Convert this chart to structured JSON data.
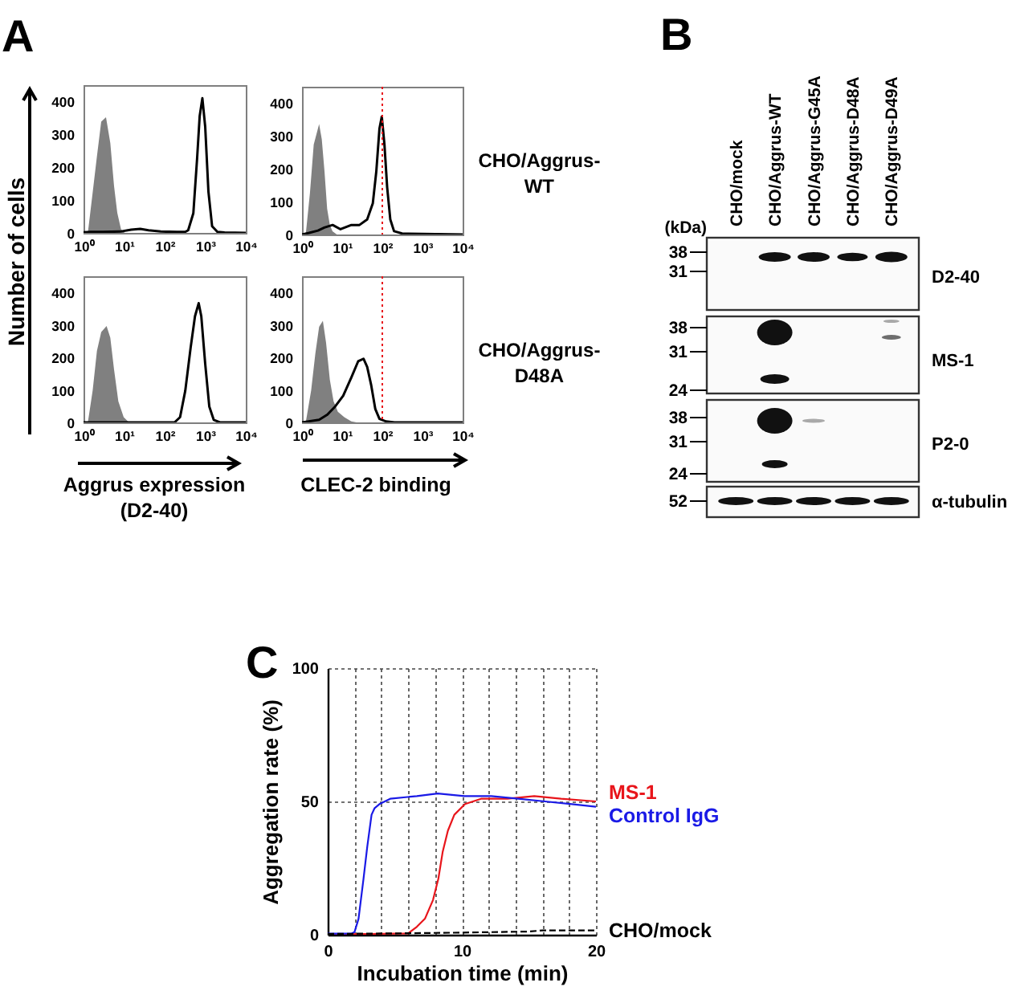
{
  "chart_data": [
    {
      "type": "line",
      "title": "A",
      "ylabel": "Number of cells",
      "log": "x",
      "xlim": [
        1,
        10000
      ],
      "xticks": [
        {
          "value": 1,
          "label": "10⁰"
        },
        {
          "value": 10,
          "label": "10¹"
        },
        {
          "value": 100,
          "label": "10²"
        },
        {
          "value": 1000,
          "label": "10³"
        },
        {
          "value": 10000,
          "label": "10⁴"
        }
      ],
      "ylim": [
        0,
        450
      ],
      "yticks": [
        0,
        100,
        200,
        300,
        400
      ],
      "series": [
        {
          "type": "area",
          "color": "#808080",
          "x": [
            1.28,
            1.68,
            2.14,
            2.73,
            3.58,
            4.57,
            5.65,
            6.79,
            8.4,
            10.4
          ],
          "values": [
            0,
            123,
            233,
            339,
            352,
            274,
            143,
            61,
            11,
            0
          ]
        },
        {
          "color": "#000000",
          "x": [
            1,
            1.5,
            3,
            8,
            15,
            25,
            40,
            80,
            200,
            320,
            380,
            510,
            630,
            730,
            851,
            1000,
            1200,
            1480,
            2000,
            3000,
            10000
          ],
          "values": [
            2,
            3,
            3,
            4,
            10,
            12,
            8,
            4,
            3,
            3,
            8,
            60,
            225,
            355,
            410,
            323,
            126,
            20,
            3,
            1,
            0
          ]
        }
      ]
    },
    {
      "type": "line",
      "log": "x",
      "xlim": [
        1,
        10000
      ],
      "xticks": [
        {
          "value": 1,
          "label": "10⁰"
        },
        {
          "value": 10,
          "label": "10¹"
        },
        {
          "value": 100,
          "label": "10²"
        },
        {
          "value": 1000,
          "label": "10³"
        },
        {
          "value": 10000,
          "label": "10⁴"
        }
      ],
      "ylim": [
        0,
        450
      ],
      "yticks": [
        0,
        100,
        200,
        300,
        400
      ],
      "annotations": [
        "CHO/Aggrus-WT"
      ],
      "ref_lines": [
        {
          "axis": "x",
          "value": 100,
          "color": "#e8151b",
          "line_style": "dotted"
        }
      ],
      "series": [
        {
          "type": "area",
          "color": "#808080",
          "x": [
            1.24,
            1.58,
            1.96,
            2.67,
            3.11,
            3.63,
            4.23,
            4.94,
            5.75,
            7.36
          ],
          "values": [
            0,
            127,
            274,
            336,
            290,
            193,
            78,
            29,
            10,
            0
          ]
        },
        {
          "color": "#000000",
          "x": [
            1,
            1.5,
            2.5,
            3.6,
            5.8,
            9.1,
            17,
            27,
            42,
            58,
            71,
            85,
            97,
            113,
            132,
            158,
            196,
            310,
            10000
          ],
          "values": [
            0,
            5,
            12,
            21,
            29,
            16,
            29,
            29,
            46,
            95,
            193,
            323,
            359,
            274,
            144,
            46,
            10,
            3,
            0
          ]
        }
      ]
    },
    {
      "type": "line",
      "xlabel": "Aggrus expression (D2-40)",
      "log": "x",
      "xlim": [
        1,
        10000
      ],
      "xticks": [
        {
          "value": 1,
          "label": "10⁰"
        },
        {
          "value": 10,
          "label": "10¹"
        },
        {
          "value": 100,
          "label": "10²"
        },
        {
          "value": 1000,
          "label": "10³"
        },
        {
          "value": 10000,
          "label": "10⁴"
        }
      ],
      "ylim": [
        0,
        450
      ],
      "yticks": [
        0,
        100,
        200,
        300,
        400
      ],
      "series": [
        {
          "type": "area",
          "color": "#808080",
          "x": [
            1.28,
            1.68,
            2.14,
            2.73,
            3.7,
            4.57,
            5.65,
            7.21,
            9.77,
            13.2
          ],
          "values": [
            0,
            98,
            220,
            278,
            297,
            261,
            163,
            65,
            16,
            0
          ]
        },
        {
          "color": "#000000",
          "x": [
            1,
            175,
            240,
            323,
            436,
            560,
            690,
            800,
            1000,
            1260,
            1620,
            2300,
            10000
          ],
          "values": [
            0,
            0,
            16,
            98,
            229,
            327,
            367,
            327,
            180,
            49,
            8,
            0,
            0
          ]
        }
      ]
    },
    {
      "type": "line",
      "xlabel": "CLEC-2 binding",
      "log": "x",
      "xlim": [
        1,
        10000
      ],
      "xticks": [
        {
          "value": 1,
          "label": "10⁰"
        },
        {
          "value": 10,
          "label": "10¹"
        },
        {
          "value": 100,
          "label": "10²"
        },
        {
          "value": 1000,
          "label": "10³"
        },
        {
          "value": 10000,
          "label": "10⁴"
        }
      ],
      "ylim": [
        0,
        450
      ],
      "yticks": [
        0,
        100,
        200,
        300,
        400
      ],
      "annotations": [
        "CHO/Aggrus-D48A"
      ],
      "ref_lines": [
        {
          "axis": "x",
          "value": 100,
          "color": "#e8151b",
          "line_style": "dotted"
        }
      ],
      "series": [
        {
          "type": "area",
          "color": "#808080",
          "x": [
            1.24,
            1.69,
            2.15,
            2.67,
            3.31,
            3.98,
            4.94,
            6.12,
            7.82,
            11.3,
            16.9,
            22.9
          ],
          "values": [
            0,
            98,
            212,
            294,
            313,
            245,
            131,
            65,
            33,
            16,
            3,
            0
          ]
        },
        {
          "color": "#000000",
          "x": [
            1,
            2.67,
            4.3,
            6.7,
            10.6,
            17,
            25,
            34,
            42,
            53,
            67,
            85,
            124,
            200,
            10000
          ],
          "values": [
            0,
            8,
            24,
            49,
            82,
            139,
            188,
            196,
            171,
            114,
            41,
            11,
            3,
            0,
            0
          ]
        }
      ]
    },
    {
      "type": "other",
      "title": "B",
      "categories": [
        "CHO/mock",
        "CHO/Aggrus-WT",
        "CHO/Aggrus-G45A",
        "CHO/Aggrus-D48A",
        "CHO/Aggrus-D49A"
      ],
      "ylabel": "(kDa)",
      "y2_categories": [
        "D2-40",
        "MS-1",
        "P2-0",
        "α-tubulin"
      ],
      "annotations": [
        "38",
        "31",
        "38",
        "31",
        "24",
        "38",
        "31",
        "24",
        "52"
      ]
    },
    {
      "type": "line",
      "title": "C",
      "xlabel": "Incubation time (min)",
      "ylabel": "Aggregation rate (%)",
      "xlim": [
        0,
        20
      ],
      "xticks": [
        0,
        {
          "value": 2,
          "label": null
        },
        {
          "value": 4,
          "label": null
        },
        {
          "value": 6,
          "label": null
        },
        {
          "value": 8,
          "label": null
        },
        10,
        {
          "value": 12,
          "label": null
        },
        {
          "value": 14,
          "label": null
        },
        {
          "value": 16,
          "label": null
        },
        {
          "value": 18,
          "label": null
        },
        20
      ],
      "ylim": [
        0,
        100
      ],
      "yticks": [
        0,
        50,
        100
      ],
      "grid": true,
      "series": [
        {
          "name": "MS-1",
          "color": "#e8151b",
          "x": [
            0,
            3,
            6,
            6.65,
            7.25,
            7.85,
            8.25,
            8.57,
            8.96,
            9.44,
            10.24,
            11.43,
            13.4,
            15.4,
            17.4,
            20
          ],
          "values": [
            0.2,
            0.3,
            0.5,
            3,
            6,
            13,
            21,
            31,
            39,
            45,
            49,
            51,
            51,
            52,
            51,
            50
          ]
        },
        {
          "name": "Control IgG",
          "color": "#1a1ae6",
          "x": [
            0,
            1,
            1.8,
            2,
            2.3,
            2.67,
            2.95,
            3.27,
            3.5,
            3.86,
            4.66,
            6.65,
            8.2,
            10.2,
            12.2,
            14.2,
            16.2,
            18.2,
            20
          ],
          "values": [
            0.4,
            0.4,
            0.5,
            1,
            6,
            21,
            33,
            45,
            47.5,
            49,
            51,
            52,
            53,
            52,
            52,
            51,
            50,
            49,
            48
          ]
        },
        {
          "name": "CHO/mock",
          "color": "#000000",
          "line_style": "dashed",
          "x": [
            0,
            5,
            10,
            15,
            16,
            20
          ],
          "values": [
            0.3,
            0.5,
            0.8,
            1.2,
            1.6,
            1.6
          ]
        }
      ]
    }
  ]
}
